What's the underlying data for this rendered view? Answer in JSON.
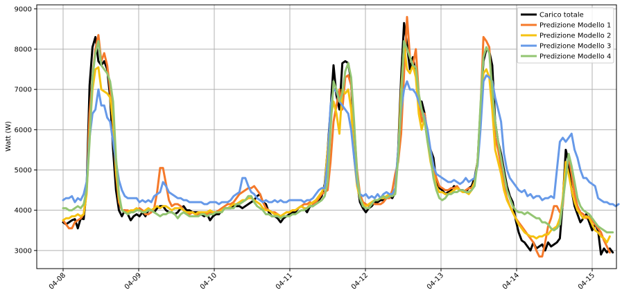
{
  "chart_data": {
    "type": "line",
    "title": "",
    "xlabel": "",
    "ylabel": "Watt (W)",
    "grid": true,
    "legend_position": "top-right",
    "x_range": [
      "04-08",
      "04-15"
    ],
    "x_ticks": [
      "04-08",
      "04-09",
      "04-10",
      "04-11",
      "04-12",
      "04-13",
      "04-14",
      "04-15"
    ],
    "y_range": [
      2550,
      9100
    ],
    "y_ticks": [
      3000,
      4000,
      5000,
      6000,
      7000,
      8000,
      9000
    ],
    "x_start": "04-08",
    "x_step_days": 0.0416667,
    "series": [
      {
        "name": "Carico totale",
        "color": "#000000",
        "values": [
          3700,
          3650,
          3700,
          3750,
          3780,
          3550,
          3800,
          3780,
          4500,
          7100,
          8050,
          8300,
          7700,
          7600,
          7700,
          7500,
          6800,
          5500,
          4500,
          4000,
          3850,
          4000,
          3900,
          3750,
          3850,
          3900,
          3850,
          3950,
          3850,
          4000,
          4000,
          3950,
          4050,
          4100,
          4100,
          4000,
          3950,
          3950,
          3900,
          3950,
          4050,
          4100,
          4000,
          4000,
          3950,
          3950,
          3950,
          3900,
          3850,
          3900,
          3750,
          3850,
          3900,
          3900,
          4000,
          4050,
          4050,
          4050,
          4100,
          4100,
          4100,
          4050,
          4100,
          4150,
          4200,
          4250,
          4350,
          4400,
          4200,
          4150,
          3950,
          3850,
          3850,
          3800,
          3700,
          3800,
          3850,
          3900,
          3950,
          3950,
          4050,
          4100,
          4050,
          3950,
          4100,
          4100,
          4200,
          4250,
          4350,
          4650,
          5500,
          6500,
          7600,
          6850,
          6500,
          7650,
          7700,
          7650,
          7200,
          5500,
          4700,
          4200,
          4050,
          3950,
          4050,
          4100,
          4200,
          4200,
          4250,
          4250,
          4300,
          4350,
          4300,
          4450,
          5500,
          7300,
          8650,
          8100,
          7500,
          7800,
          7400,
          6500,
          6700,
          6400,
          5800,
          5500,
          5300,
          4700,
          4550,
          4500,
          4400,
          4450,
          4500,
          4600,
          4550,
          4500,
          4500,
          4450,
          4550,
          4600,
          4800,
          5200,
          6500,
          7700,
          8000,
          7950,
          7600,
          6200,
          5700,
          5400,
          5000,
          4600,
          4350,
          4200,
          3750,
          3450,
          3250,
          3200,
          3100,
          3000,
          3200,
          3050,
          3100,
          3150,
          3000,
          3200,
          3100,
          3150,
          3200,
          3300,
          4200,
          5500,
          5200,
          4500,
          4100,
          3900,
          3700,
          3800,
          3900,
          3700,
          3500,
          3650,
          3500,
          2900,
          3050,
          2950,
          3050,
          2950
        ]
      },
      {
        "name": "Predizione Modello 1",
        "color": "#f5792a",
        "values": [
          3750,
          3650,
          3550,
          3550,
          3700,
          3750,
          3800,
          3900,
          4500,
          6400,
          7300,
          8000,
          8350,
          7700,
          7900,
          7600,
          7000,
          6100,
          4900,
          4200,
          4000,
          4000,
          4000,
          3950,
          4000,
          4000,
          4050,
          4000,
          3900,
          3900,
          3950,
          4050,
          4450,
          5050,
          5050,
          4650,
          4250,
          4100,
          4150,
          4150,
          4100,
          4000,
          3950,
          3900,
          3950,
          3900,
          3900,
          3950,
          3900,
          3900,
          3950,
          3950,
          3950,
          4000,
          4050,
          4100,
          4150,
          4150,
          4200,
          4300,
          4400,
          4450,
          4500,
          4550,
          4550,
          4600,
          4500,
          4400,
          4200,
          4050,
          4000,
          3950,
          3950,
          3900,
          3850,
          3900,
          3950,
          3950,
          4000,
          4000,
          4050,
          4100,
          4150,
          4150,
          4200,
          4150,
          4200,
          4300,
          4400,
          4450,
          4500,
          5200,
          6200,
          6600,
          7000,
          6500,
          7300,
          7350,
          7100,
          6100,
          5000,
          4400,
          4200,
          4150,
          4100,
          4200,
          4150,
          4150,
          4150,
          4200,
          4300,
          4300,
          4500,
          4900,
          5200,
          5900,
          7400,
          8800,
          7800,
          7600,
          8000,
          6900,
          6200,
          6400,
          5900,
          5300,
          5100,
          4800,
          4600,
          4550,
          4500,
          4500,
          4550,
          4550,
          4600,
          4500,
          4450,
          4500,
          4550,
          4550,
          4700,
          5200,
          6500,
          8300,
          8200,
          8050,
          6800,
          5800,
          5500,
          5100,
          4600,
          4300,
          4100,
          3950,
          3800,
          3700,
          3600,
          3500,
          3400,
          3300,
          3200,
          3000,
          2850,
          2850,
          3200,
          3600,
          3800,
          4100,
          4100,
          3950,
          4100,
          5000,
          5300,
          4900,
          4400,
          4100,
          3950,
          3900,
          3800,
          3850,
          3750,
          3650,
          3550,
          3450,
          3250,
          3100,
          2950
        ]
      },
      {
        "name": "Predizione Modello 2",
        "color": "#f5c211",
        "values": [
          3750,
          3800,
          3800,
          3850,
          3850,
          3900,
          3850,
          3900,
          4400,
          5900,
          7000,
          7500,
          7550,
          7000,
          6950,
          6900,
          6800,
          6200,
          5000,
          4300,
          4000,
          3950,
          3950,
          4000,
          4000,
          4050,
          4000,
          3950,
          4000,
          4050,
          4000,
          4050,
          4100,
          4050,
          4100,
          4100,
          4050,
          4000,
          4050,
          4050,
          4050,
          4000,
          3950,
          3950,
          3950,
          3900,
          3950,
          3950,
          3950,
          3950,
          4000,
          3950,
          3950,
          3950,
          4000,
          4050,
          4050,
          4100,
          4150,
          4150,
          4200,
          4250,
          4250,
          4300,
          4300,
          4250,
          4200,
          4150,
          4050,
          4000,
          4000,
          3950,
          3900,
          3900,
          3850,
          3900,
          3950,
          3950,
          4000,
          4000,
          4050,
          4100,
          4050,
          4050,
          4150,
          4200,
          4250,
          4350,
          4450,
          4600,
          5500,
          6300,
          6700,
          6400,
          5900,
          7000,
          6900,
          7000,
          6500,
          5300,
          4600,
          4300,
          4150,
          4100,
          4150,
          4200,
          4250,
          4250,
          4300,
          4300,
          4350,
          4400,
          4350,
          4500,
          5400,
          7000,
          8100,
          7500,
          7400,
          7600,
          7300,
          6400,
          6000,
          6300,
          5700,
          5200,
          4900,
          4600,
          4450,
          4450,
          4400,
          4400,
          4450,
          4500,
          4550,
          4500,
          4450,
          4450,
          4400,
          4500,
          4700,
          5200,
          6300,
          7400,
          7500,
          7300,
          6500,
          5500,
          5200,
          4900,
          4500,
          4250,
          4100,
          3950,
          3800,
          3650,
          3550,
          3450,
          3400,
          3350,
          3350,
          3300,
          3350,
          3350,
          3400,
          3400,
          3500,
          3550,
          3600,
          3800,
          4300,
          5200,
          4900,
          4500,
          4200,
          4000,
          3900,
          3800,
          3850,
          3800,
          3650,
          3500,
          3450,
          3350,
          3300,
          3200,
          3350
        ]
      },
      {
        "name": "Predizione Modello 3",
        "color": "#6699e8",
        "values": [
          4250,
          4300,
          4300,
          4350,
          4200,
          4300,
          4250,
          4400,
          4700,
          5800,
          6400,
          6500,
          7000,
          6600,
          6600,
          6300,
          6200,
          5700,
          5200,
          4750,
          4500,
          4350,
          4300,
          4300,
          4300,
          4300,
          4200,
          4250,
          4200,
          4250,
          4200,
          4350,
          4400,
          4450,
          4700,
          4600,
          4450,
          4400,
          4350,
          4300,
          4300,
          4250,
          4250,
          4200,
          4200,
          4200,
          4200,
          4200,
          4150,
          4150,
          4200,
          4200,
          4200,
          4150,
          4200,
          4200,
          4200,
          4250,
          4350,
          4400,
          4450,
          4800,
          4800,
          4600,
          4450,
          4400,
          4300,
          4250,
          4200,
          4250,
          4200,
          4200,
          4250,
          4200,
          4250,
          4200,
          4200,
          4250,
          4250,
          4250,
          4250,
          4250,
          4200,
          4250,
          4250,
          4300,
          4400,
          4500,
          4550,
          4550,
          5200,
          6600,
          7000,
          6950,
          6700,
          6600,
          6500,
          6400,
          6000,
          5300,
          4700,
          4400,
          4350,
          4400,
          4300,
          4350,
          4300,
          4400,
          4300,
          4400,
          4450,
          4400,
          4400,
          4550,
          5500,
          6500,
          7000,
          7200,
          7000,
          7000,
          6900,
          6700,
          6500,
          6300,
          6000,
          5500,
          5100,
          4900,
          4850,
          4800,
          4750,
          4700,
          4700,
          4750,
          4700,
          4650,
          4700,
          4800,
          4700,
          4750,
          4800,
          5100,
          6000,
          7200,
          7350,
          7300,
          7200,
          6800,
          6500,
          6200,
          5400,
          5000,
          4800,
          4700,
          4600,
          4500,
          4450,
          4500,
          4350,
          4400,
          4300,
          4350,
          4350,
          4250,
          4300,
          4300,
          4350,
          4300,
          5000,
          5700,
          5800,
          5700,
          5800,
          5900,
          5500,
          5300,
          5000,
          4800,
          4800,
          4700,
          4650,
          4600,
          4300,
          4250,
          4200,
          4200,
          4150,
          4150,
          4100,
          4150
        ]
      },
      {
        "name": "Predizione Modello 4",
        "color": "#93c572",
        "values": [
          4050,
          4050,
          4000,
          4000,
          4050,
          4100,
          4050,
          4150,
          4500,
          5700,
          7300,
          7900,
          8200,
          7600,
          7500,
          7400,
          7200,
          6700,
          5300,
          4400,
          4000,
          3950,
          3900,
          3950,
          3950,
          4000,
          4000,
          3950,
          3950,
          4000,
          4000,
          3950,
          3900,
          3850,
          3900,
          3900,
          3950,
          3950,
          3900,
          3800,
          3900,
          3950,
          3900,
          3850,
          3850,
          3850,
          3850,
          3900,
          3900,
          3850,
          3900,
          3900,
          3950,
          3950,
          3950,
          4050,
          4050,
          4050,
          4050,
          4150,
          4150,
          4200,
          4250,
          4350,
          4350,
          4200,
          4100,
          4050,
          4000,
          3900,
          3900,
          3850,
          3850,
          3850,
          3800,
          3850,
          3850,
          3850,
          3900,
          3900,
          3950,
          4000,
          4000,
          4050,
          4100,
          4100,
          4150,
          4200,
          4250,
          4350,
          4700,
          6000,
          7200,
          7000,
          6700,
          6900,
          7450,
          7650,
          7300,
          6200,
          4900,
          4300,
          4100,
          4050,
          4050,
          4150,
          4250,
          4250,
          4300,
          4350,
          4300,
          4350,
          4350,
          4400,
          5300,
          6700,
          8200,
          8000,
          7800,
          7600,
          7550,
          6900,
          6500,
          6200,
          5700,
          5300,
          4800,
          4500,
          4300,
          4250,
          4300,
          4400,
          4400,
          4450,
          4450,
          4500,
          4500,
          4450,
          4450,
          4500,
          4600,
          5200,
          6600,
          7800,
          8050,
          7900,
          7000,
          6200,
          5700,
          5300,
          4900,
          4500,
          4300,
          4100,
          4000,
          3950,
          3950,
          3900,
          3950,
          3900,
          3850,
          3800,
          3800,
          3700,
          3700,
          3650,
          3550,
          3500,
          3550,
          3650,
          4200,
          4800,
          5400,
          5100,
          4700,
          4300,
          4100,
          4000,
          3950,
          3900,
          3800,
          3700,
          3600,
          3550,
          3500,
          3450,
          3450,
          3450
        ]
      }
    ]
  }
}
